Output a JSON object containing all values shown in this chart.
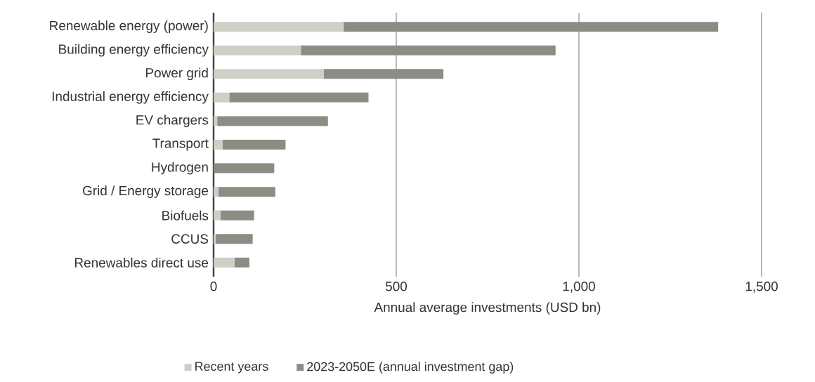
{
  "chart_data": {
    "type": "bar",
    "orientation": "horizontal",
    "stacked": true,
    "xlabel": "Annual average investments (USD bn)",
    "categories": [
      "Renewable energy (power)",
      "Building energy efficiency",
      "Power grid",
      "Industrial energy efficiency",
      "EV chargers",
      "Transport",
      "Hydrogen",
      "Grid / Energy storage",
      "Biofuels",
      "CCUS",
      "Renewables direct use"
    ],
    "series": [
      {
        "name": "Recent years",
        "color": "#d0cfc6",
        "values": [
          356,
          239,
          302,
          43,
          10,
          24,
          null,
          13,
          19,
          6,
          57
        ]
      },
      {
        "name": "2023-2050E (annual investment gap)",
        "color": "#8c8c84",
        "values": [
          1025,
          697,
          327,
          381,
          303,
          173,
          166,
          156,
          92,
          101,
          41
        ]
      }
    ],
    "xlim": [
      0,
      1500
    ],
    "xticks": [
      0,
      {
        "value": 500,
        "label": "500"
      },
      {
        "value": 1000,
        "label": "1,000"
      },
      {
        "value": 1500,
        "label": "1,500"
      }
    ],
    "grid": "x",
    "legend": "bottom"
  }
}
